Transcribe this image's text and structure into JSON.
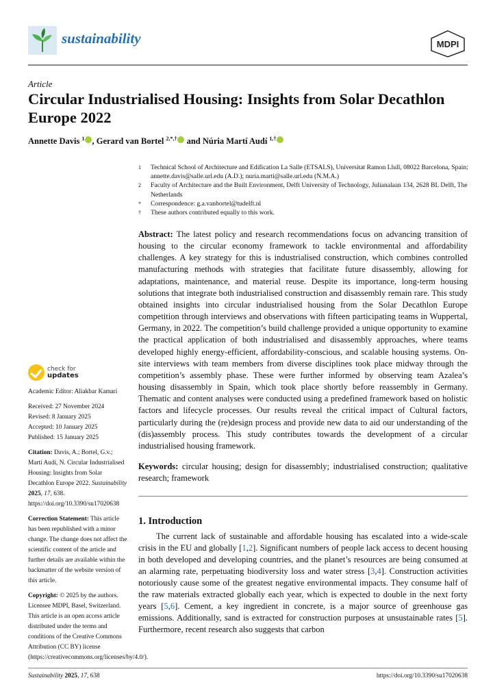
{
  "header": {
    "journal": "sustainability",
    "publisher_logo": "MDPI",
    "brand_color": "#2a6fb0"
  },
  "article_type": "Article",
  "title": "Circular Industrialised Housing: Insights from Solar Decathlon Europe 2022",
  "authors": [
    {
      "name": "Annette Davis",
      "sup": "1"
    },
    {
      "name": "Gerard van Bortel",
      "sup": "2,*,†"
    },
    {
      "name": "Núria Martí Audí",
      "sup": "1,†"
    }
  ],
  "authors_sep": [
    ", ",
    " and "
  ],
  "affiliations": [
    {
      "mark": "1",
      "text": "Technical School of Architecture and Edification La Salle (ETSALS), Universitat Ramon Llull, 08022 Barcelona, Spain; annette.davis@salle.url.edu (A.D.); nuria.marti@salle.url.edu (N.M.A.)"
    },
    {
      "mark": "2",
      "text": "Faculty of Architecture and the Built Environment, Delft University of Technology, Julianalaan 134, 2628 BL Delft, The Netherlands"
    },
    {
      "mark": "*",
      "text": "Correspondence: g.a.vanbortel@tudelft.nl"
    },
    {
      "mark": "†",
      "text": "These authors contributed equally to this work."
    }
  ],
  "abstract": {
    "label": "Abstract:",
    "text": " The latest policy and research recommendations focus on advancing transition of housing to the circular economy framework to tackle environmental and affordability challenges. A key strategy for this is industrialised construction, which combines controlled manufacturing methods with strategies that facilitate future disassembly, allowing for adaptations, maintenance, and material reuse. Despite its importance, long-term housing solutions that integrate both industrialised construction and disassembly remain rare. This study obtained insights into circular industrialised housing from the Solar Decathlon Europe competition through interviews and observations with fifteen participating teams in Wuppertal, Germany, in 2022. The competition’s build challenge provided a unique opportunity to examine the practical application of both industrialised and disassembly approaches, where teams developed highly energy-efficient, affordability-conscious, and scalable housing systems. On-site interviews with team members from diverse disciplines took place midway through the competition’s assembly phase. These were further informed by observing team Azalea’s housing disassembly in Spain, which took place shortly before reassembly in Germany. Thematic and content analyses were conducted using a predefined framework based on holistic factors and lifecycle processes. Our results reveal the critical impact of Cultural factors, particularly during the (re)design process and provide new data to aid our understanding of the (dis)assembly process. This study contributes towards the development of a circular industrialised housing framework."
  },
  "keywords": {
    "label": "Keywords:",
    "text": " circular housing; design for disassembly; industrialised construction; qualitative research; framework"
  },
  "sidebar": {
    "check_for": "check for",
    "updates": "updates",
    "editor": "Academic Editor: Aliakbar Kamari",
    "received": "Received: 27 November 2024",
    "revised": "Revised: 8 January 2025",
    "accepted": "Accepted: 10 January 2025",
    "published": "Published: 15 January 2025",
    "citation_label": "Citation:",
    "citation_text": " Davis, A.; Bortel, G.v.; Martí Audí, N. Circular Industrialised Housing: Insights from Solar Decathlon Europe 2022. ",
    "citation_journal": "Sustainability",
    "citation_year": "2025",
    "citation_vol": "17",
    "citation_rest": ", 638. https://doi.org/10.3390/su17020638",
    "correction_label": "Correction Statement:",
    "correction_text": " This article has been republished with a minor change. The change does not affect the scientific content of the article and further details are available within the backmatter of the website version of this article.",
    "copyright_label": "Copyright:",
    "copyright_text": " © 2025 by the authors. Licensee MDPI, Basel, Switzerland. This article is an open access article distributed under the terms and conditions of the Creative Commons Attribution (CC BY) license (https://creativecommons.org/licenses/by/4.0/)."
  },
  "intro": {
    "heading": "1. Introduction",
    "segments": [
      "The current lack of sustainable and affordable housing has escalated into a wide-scale crisis in the EU and globally [",
      "1",
      ",",
      "2",
      "]. Significant numbers of people lack access to decent housing in both developed and developing countries, and the planet’s resources are being consumed at an alarming rate, perpetuating biodiversity loss and water stress [",
      "3",
      ",",
      "4",
      "]. Construction activities notoriously cause some of the greatest negative environmental impacts. They consume half of the raw materials extracted globally each year, which is expected to double in the next forty years [",
      "5",
      ",",
      "6",
      "]. Cement, a key ingredient in concrete, is a major source of greenhouse gas emissions. Additionally, sand is extracted for construction purposes at unsustainable rates [",
      "5",
      "]. Furthermore, recent research also suggests that carbon"
    ]
  },
  "footer": {
    "journal": "Sustainability",
    "year": "2025",
    "volume": "17",
    "article": ", 638",
    "doi": "https://doi.org/10.3390/su17020638"
  }
}
